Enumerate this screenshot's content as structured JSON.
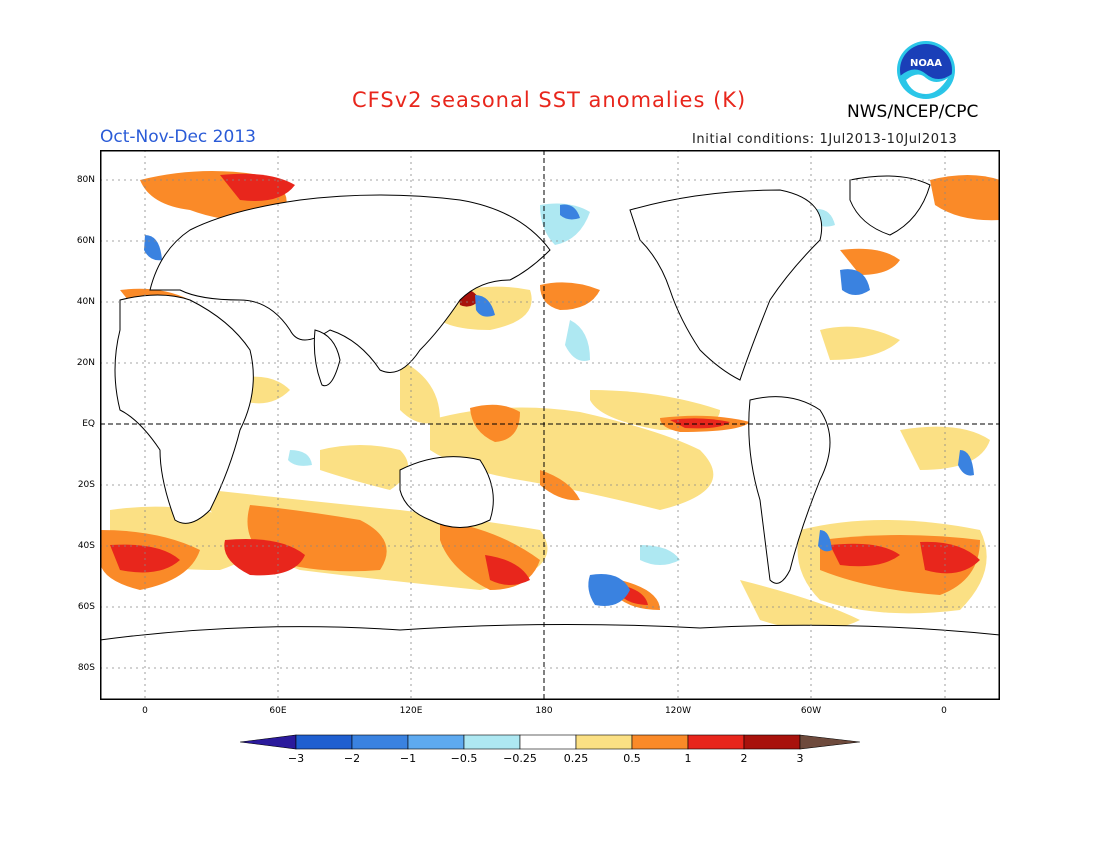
{
  "header": {
    "title": "CFSv2 seasonal SST anomalies (K)",
    "agency": "NWS/NCEP/CPC",
    "logo_text": "NOAA",
    "season": "Oct-Nov-Dec 2013",
    "initial_conditions": "Initial conditions: 1Jul2013-10Jul2013"
  },
  "map": {
    "lat_labels": [
      "80N",
      "60N",
      "40N",
      "20N",
      "EQ",
      "20S",
      "40S",
      "60S",
      "80S"
    ],
    "lon_labels": [
      "0",
      "60E",
      "120E",
      "180",
      "120W",
      "60W",
      "0"
    ],
    "land_color": "#ffffff",
    "coastline_color": "#000000",
    "grid": "dotted"
  },
  "colorbar": {
    "labels": [
      "−3",
      "−2",
      "−1",
      "−0.5",
      "−0.25",
      "0.25",
      "0.5",
      "1",
      "2",
      "3"
    ],
    "colors": [
      "#2b1a9c",
      "#1f5fd0",
      "#3a82e0",
      "#5eaaf0",
      "#aee8f2",
      "#ffffff",
      "#fbe084",
      "#fa8a28",
      "#e8261c",
      "#a8120c",
      "#6e4a3c"
    ]
  }
}
